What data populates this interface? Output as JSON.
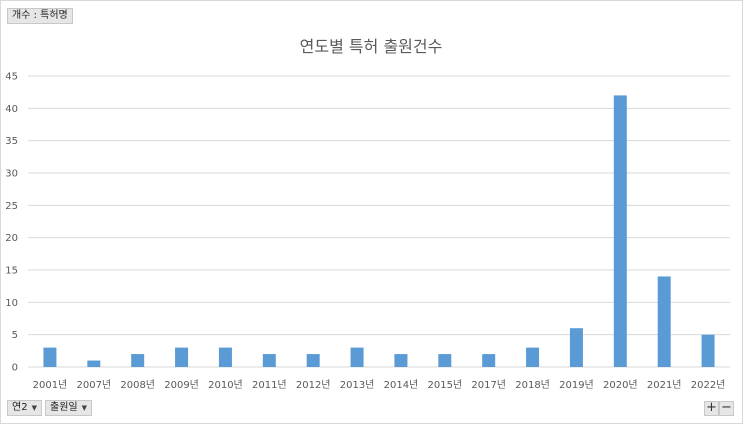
{
  "pivot": {
    "value_field": "개수 : 특허명",
    "axis_fields": [
      "연2",
      "출원일"
    ],
    "expand_symbol": "+",
    "collapse_symbol": "−"
  },
  "colors": {
    "bar": "#5b9bd5",
    "grid": "#d9d9d9",
    "text": "#595959"
  },
  "chart_data": {
    "type": "bar",
    "title": "연도별 특허 출원건수",
    "categories": [
      "2001년",
      "2007년",
      "2008년",
      "2009년",
      "2010년",
      "2011년",
      "2012년",
      "2013년",
      "2014년",
      "2015년",
      "2017년",
      "2018년",
      "2019년",
      "2020년",
      "2021년",
      "2022년"
    ],
    "values": [
      3,
      1,
      2,
      3,
      3,
      2,
      2,
      3,
      2,
      2,
      2,
      3,
      6,
      42,
      14,
      5
    ],
    "ylim": [
      0,
      45
    ],
    "yticks": [
      0,
      5,
      10,
      15,
      20,
      25,
      30,
      35,
      40,
      45
    ],
    "grid": true,
    "legend": "none",
    "xlabel": "",
    "ylabel": ""
  }
}
